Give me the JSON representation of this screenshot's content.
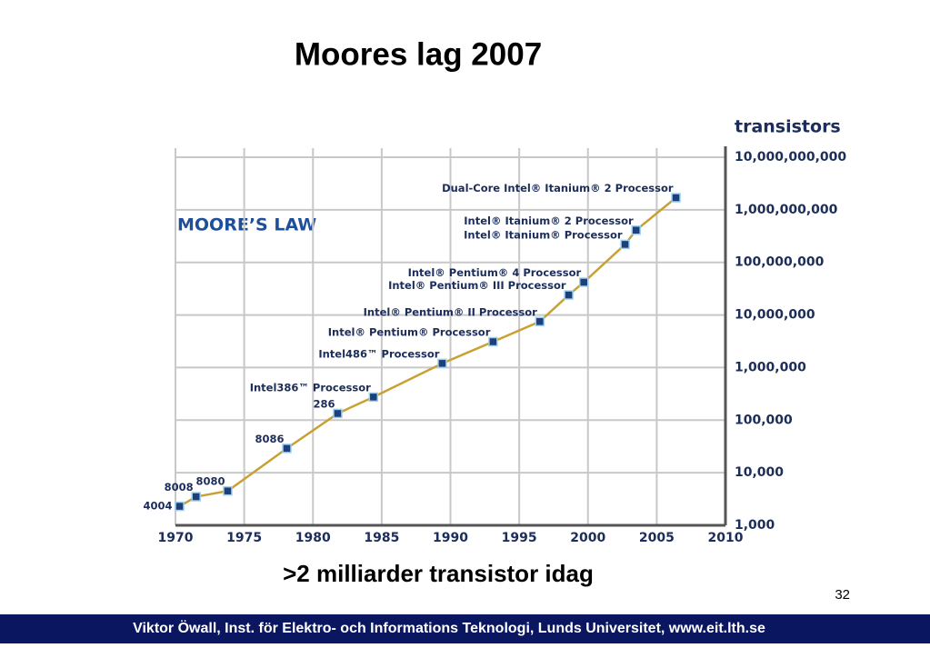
{
  "slide": {
    "title": "Moores lag 2007",
    "subtitle": ">2 milliarder transistor idag",
    "page_number": "32",
    "footer": "Viktor Öwall, Inst. för Elektro- och Informations Teknologi, Lunds Universitet, www.eit.lth.se"
  },
  "chart_data": {
    "type": "line",
    "title": "MOORE’S LAW",
    "y_label": "transistors",
    "x": [
      1970.3,
      1971.5,
      1973.8,
      1978.1,
      1981.8,
      1984.4,
      1989.4,
      1993.1,
      1996.5,
      1998.6,
      1999.7,
      2002.7,
      2003.5,
      2006.4
    ],
    "values": [
      2300,
      3500,
      4500,
      29000,
      134000,
      275000,
      1200000,
      3100000,
      7500000,
      24000000,
      42000000,
      220000000,
      410000000,
      1700000000
    ],
    "point_labels": [
      "4004",
      "8008",
      "8080",
      "8086",
      "286",
      "Intel386™ Processor",
      "Intel486™ Processor",
      "Intel® Pentium® Processor",
      "Intel® Pentium® II Processor",
      "Intel® Pentium® III Processor",
      "Intel® Pentium® 4 Processor",
      "Intel® Itanium® Processor",
      "Intel® Itanium® 2 Processor",
      "Dual-Core Intel® Itanium® 2 Processor"
    ],
    "color": "#c9a133",
    "marker_color": "#1d3f7a",
    "xlim": [
      1970,
      2010
    ],
    "xticks": [
      1970,
      1975,
      1980,
      1985,
      1990,
      1995,
      2000,
      2005,
      2010
    ],
    "ylim": [
      1000,
      10000000000
    ],
    "log_y": true,
    "grid": true,
    "yticks": [
      {
        "value": 1000,
        "label": "1,000"
      },
      {
        "value": 10000,
        "label": "10,000"
      },
      {
        "value": 100000,
        "label": "100,000"
      },
      {
        "value": 1000000,
        "label": "1,000,000"
      },
      {
        "value": 10000000,
        "label": "10,000,000"
      },
      {
        "value": 100000000,
        "label": "100,000,000"
      },
      {
        "value": 1000000000,
        "label": "1,000,000,000"
      },
      {
        "value": 10000000000,
        "label": "10,000,000,000"
      }
    ]
  }
}
